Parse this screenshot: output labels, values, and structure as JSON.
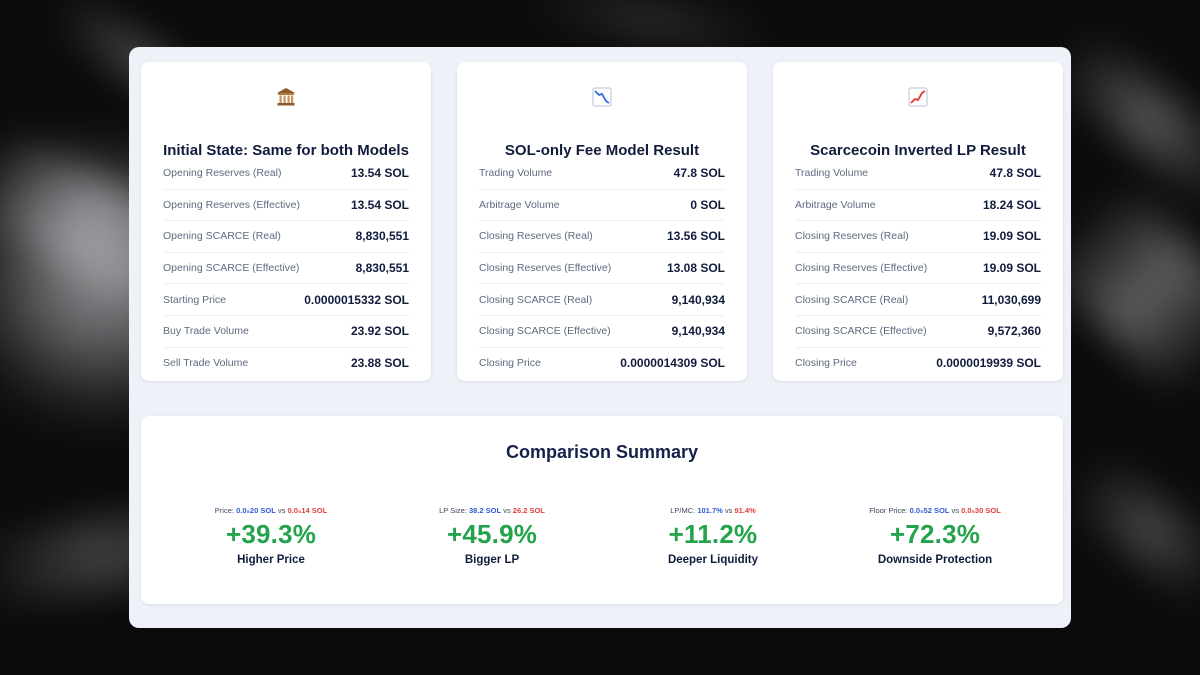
{
  "colors": {
    "positive": "#23a34b",
    "model_a": "#2f5bd8",
    "model_b": "#e43d3d",
    "title": "#111c3c"
  },
  "cards": [
    {
      "icon": "bank-icon",
      "title": "Initial State: Same for both Models",
      "rows": [
        {
          "label": "Opening Reserves (Real)",
          "value": "13.54 SOL"
        },
        {
          "label": "Opening Reserves (Effective)",
          "value": "13.54 SOL"
        },
        {
          "label": "Opening SCARCE (Real)",
          "value": "8,830,551"
        },
        {
          "label": "Opening SCARCE (Effective)",
          "value": "8,830,551"
        },
        {
          "label": "Starting Price",
          "value": "0.0000015332 SOL"
        },
        {
          "label": "Buy Trade Volume",
          "value": "23.92 SOL"
        },
        {
          "label": "Sell Trade Volume",
          "value": "23.88 SOL"
        }
      ]
    },
    {
      "icon": "chart-decreasing-icon",
      "title": "SOL-only Fee Model Result",
      "rows": [
        {
          "label": "Trading Volume",
          "value": "47.8 SOL"
        },
        {
          "label": "Arbitrage Volume",
          "value": "0 SOL"
        },
        {
          "label": "Closing Reserves (Real)",
          "value": "13.56 SOL"
        },
        {
          "label": "Closing Reserves (Effective)",
          "value": "13.08 SOL"
        },
        {
          "label": "Closing SCARCE (Real)",
          "value": "9,140,934"
        },
        {
          "label": "Closing SCARCE (Effective)",
          "value": "9,140,934"
        },
        {
          "label": "Closing Price",
          "value": "0.0000014309 SOL"
        }
      ]
    },
    {
      "icon": "chart-increasing-icon",
      "title": "Scarcecoin Inverted LP Result",
      "rows": [
        {
          "label": "Trading Volume",
          "value": "47.8 SOL"
        },
        {
          "label": "Arbitrage Volume",
          "value": "18.24 SOL"
        },
        {
          "label": "Closing Reserves (Real)",
          "value": "19.09 SOL"
        },
        {
          "label": "Closing Reserves (Effective)",
          "value": "19.09 SOL"
        },
        {
          "label": "Closing SCARCE (Real)",
          "value": "11,030,699"
        },
        {
          "label": "Closing SCARCE (Effective)",
          "value": "9,572,360"
        },
        {
          "label": "Closing Price",
          "value": "0.0000019939 SOL"
        }
      ]
    }
  ],
  "summary": {
    "title": "Comparison Summary",
    "vs_label": "vs",
    "metrics": [
      {
        "prefix": "Price:",
        "a": "0.0₅20 SOL",
        "b": "0.0₅14 SOL",
        "pct": "+39.3%",
        "name": "Higher Price"
      },
      {
        "prefix": "LP Size:",
        "a": "38.2 SOL",
        "b": "26.2 SOL",
        "pct": "+45.9%",
        "name": "Bigger LP"
      },
      {
        "prefix": "LP/MC:",
        "a": "101.7%",
        "b": "91.4%",
        "pct": "+11.2%",
        "name": "Deeper Liquidity"
      },
      {
        "prefix": "Floor Price:",
        "a": "0.0₅52 SOL",
        "b": "0.0₅30 SOL",
        "pct": "+72.3%",
        "name": "Downside Protection"
      }
    ]
  }
}
